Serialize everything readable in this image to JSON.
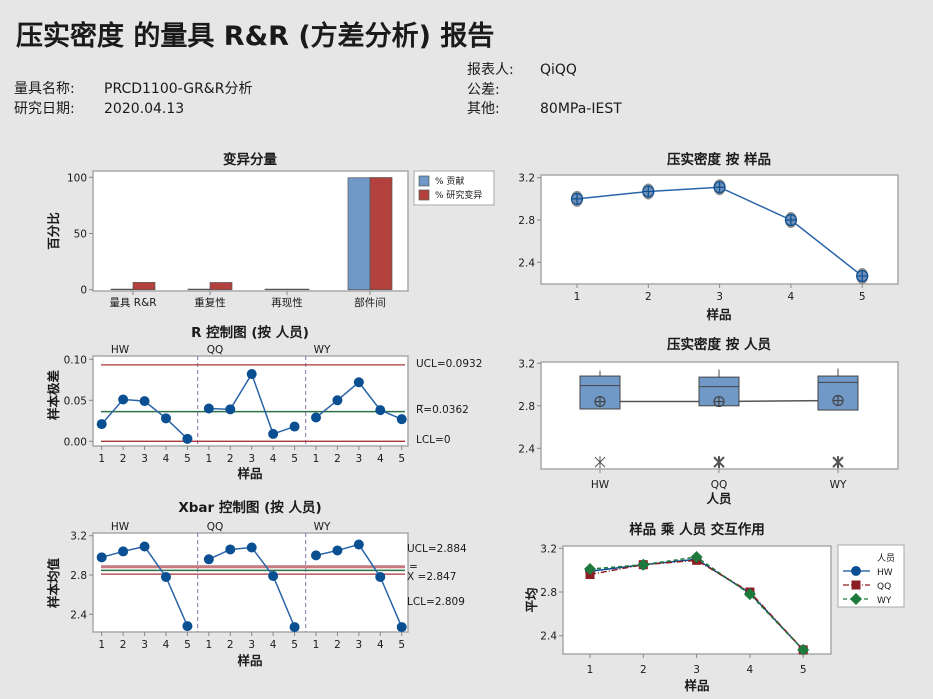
{
  "header": {
    "title": "压实密度 的量具 R&R (方差分析) 报告",
    "gauge_name_label": "量具名称:",
    "gauge_name": "PRCD1100-GR&R分析",
    "study_date_label": "研究日期:",
    "study_date": "2020.04.13",
    "reporter_label": "报表人:",
    "reporter": "QiQQ",
    "tolerance_label": "公差:",
    "tolerance": "",
    "other_label": "其他:",
    "other": "80MPa-IEST"
  },
  "colors": {
    "contribution": "#7199c8",
    "study_var": "#b3413d",
    "series_blue": "#0b4f93",
    "line_blue": "#2a64a8",
    "limit_red": "#a8343a",
    "center_green": "#2e7048",
    "qq_red": "#8b1e24",
    "wy_green": "#1e7a3c",
    "divider": "#8a6fa8"
  },
  "chart_data": [
    {
      "id": "components",
      "type": "bar",
      "title": "变异分量",
      "ylabel": "百分比",
      "xlabel": "",
      "ylim": [
        0,
        105
      ],
      "yticks": [
        0,
        50,
        100
      ],
      "categories": [
        "量具 R&R",
        "重复性",
        "再现性",
        "部件间"
      ],
      "series": [
        {
          "name": "% 贡献",
          "values": [
            0.4,
            0.4,
            0.0,
            99.6
          ]
        },
        {
          "name": "% 研究变异",
          "values": [
            6.5,
            6.4,
            0.3,
            99.8
          ]
        }
      ],
      "legend": "right"
    },
    {
      "id": "r_chart",
      "type": "line",
      "title": "R 控制图 (按 人员)",
      "ylabel": "样本极差",
      "xlabel": "样品",
      "ylim": [
        0,
        0.1
      ],
      "yticks": [
        "0.00",
        "0.05",
        "0.10"
      ],
      "groups": [
        "HW",
        "QQ",
        "WY"
      ],
      "x": [
        "1",
        "2",
        "3",
        "4",
        "5"
      ],
      "series": [
        {
          "group": "HW",
          "values": [
            0.021,
            0.051,
            0.049,
            0.028,
            0.003
          ]
        },
        {
          "group": "QQ",
          "values": [
            0.04,
            0.039,
            0.082,
            0.009,
            0.018
          ]
        },
        {
          "group": "WY",
          "values": [
            0.029,
            0.05,
            0.072,
            0.038,
            0.027
          ]
        }
      ],
      "limits": {
        "ucl": 0.0932,
        "center": 0.0362,
        "lcl": 0
      },
      "limit_labels": {
        "ucl": "UCL=0.0932",
        "center_bar": "_",
        "center": "R=0.0362",
        "lcl": "LCL=0"
      }
    },
    {
      "id": "xbar_chart",
      "type": "line",
      "title": "Xbar 控制图 (按 人员)",
      "ylabel": "样本均值",
      "xlabel": "样品",
      "ylim": [
        2.2,
        3.2
      ],
      "yticks": [
        "2.4",
        "2.8",
        "3.2"
      ],
      "groups": [
        "HW",
        "QQ",
        "WY"
      ],
      "x": [
        "1",
        "2",
        "3",
        "4",
        "5"
      ],
      "series": [
        {
          "group": "HW",
          "values": [
            2.98,
            3.04,
            3.09,
            2.78,
            2.28
          ]
        },
        {
          "group": "QQ",
          "values": [
            2.96,
            3.06,
            3.08,
            2.79,
            2.27
          ]
        },
        {
          "group": "WY",
          "values": [
            3.0,
            3.05,
            3.11,
            2.78,
            2.27
          ]
        }
      ],
      "limits": {
        "ucl": 2.884,
        "center": 2.847,
        "lcl": 2.809
      },
      "limit_labels": {
        "ucl": "UCL=2.884",
        "center_bar": "=",
        "center": "X =2.847",
        "lcl": "LCL=2.809"
      }
    },
    {
      "id": "by_part",
      "type": "line",
      "title": "压实密度 按 样品",
      "xlabel": "样品",
      "ylabel": "",
      "ylim": [
        2.2,
        3.2
      ],
      "yticks": [
        "2.4",
        "2.8",
        "3.2"
      ],
      "x": [
        "1",
        "2",
        "3",
        "4",
        "5"
      ],
      "values": [
        3.0,
        3.07,
        3.11,
        2.8,
        2.27
      ]
    },
    {
      "id": "by_operator",
      "type": "box",
      "title": "压实密度 按 人员",
      "xlabel": "人员",
      "ylabel": "",
      "ylim": [
        2.2,
        3.2
      ],
      "yticks": [
        "2.4",
        "2.8",
        "3.2"
      ],
      "categories": [
        "HW",
        "QQ",
        "WY"
      ],
      "boxes": [
        {
          "q1": 2.77,
          "median": 2.99,
          "q3": 3.08,
          "whisker_high": 3.13,
          "mean": 2.84,
          "outlier": 2.27
        },
        {
          "q1": 2.8,
          "median": 2.98,
          "q3": 3.07,
          "whisker_high": 3.14,
          "mean": 2.84,
          "outlier": 2.27
        },
        {
          "q1": 2.76,
          "median": 3.02,
          "q3": 3.08,
          "whisker_high": 3.15,
          "mean": 2.85,
          "outlier": 2.27
        }
      ]
    },
    {
      "id": "interaction",
      "type": "line",
      "title": "样品 乘 人员 交互作用",
      "xlabel": "样品",
      "ylabel": "平均",
      "ylim": [
        2.2,
        3.2
      ],
      "yticks": [
        "2.4",
        "2.8",
        "3.2"
      ],
      "x": [
        "1",
        "2",
        "3",
        "4",
        "5"
      ],
      "legend_title": "人员",
      "legend": "right",
      "series": [
        {
          "name": "HW",
          "values": [
            2.99,
            3.05,
            3.1,
            2.79,
            2.27
          ]
        },
        {
          "name": "QQ",
          "values": [
            2.96,
            3.05,
            3.09,
            2.8,
            2.27
          ]
        },
        {
          "name": "WY",
          "values": [
            3.01,
            3.05,
            3.12,
            2.78,
            2.27
          ]
        }
      ]
    }
  ]
}
